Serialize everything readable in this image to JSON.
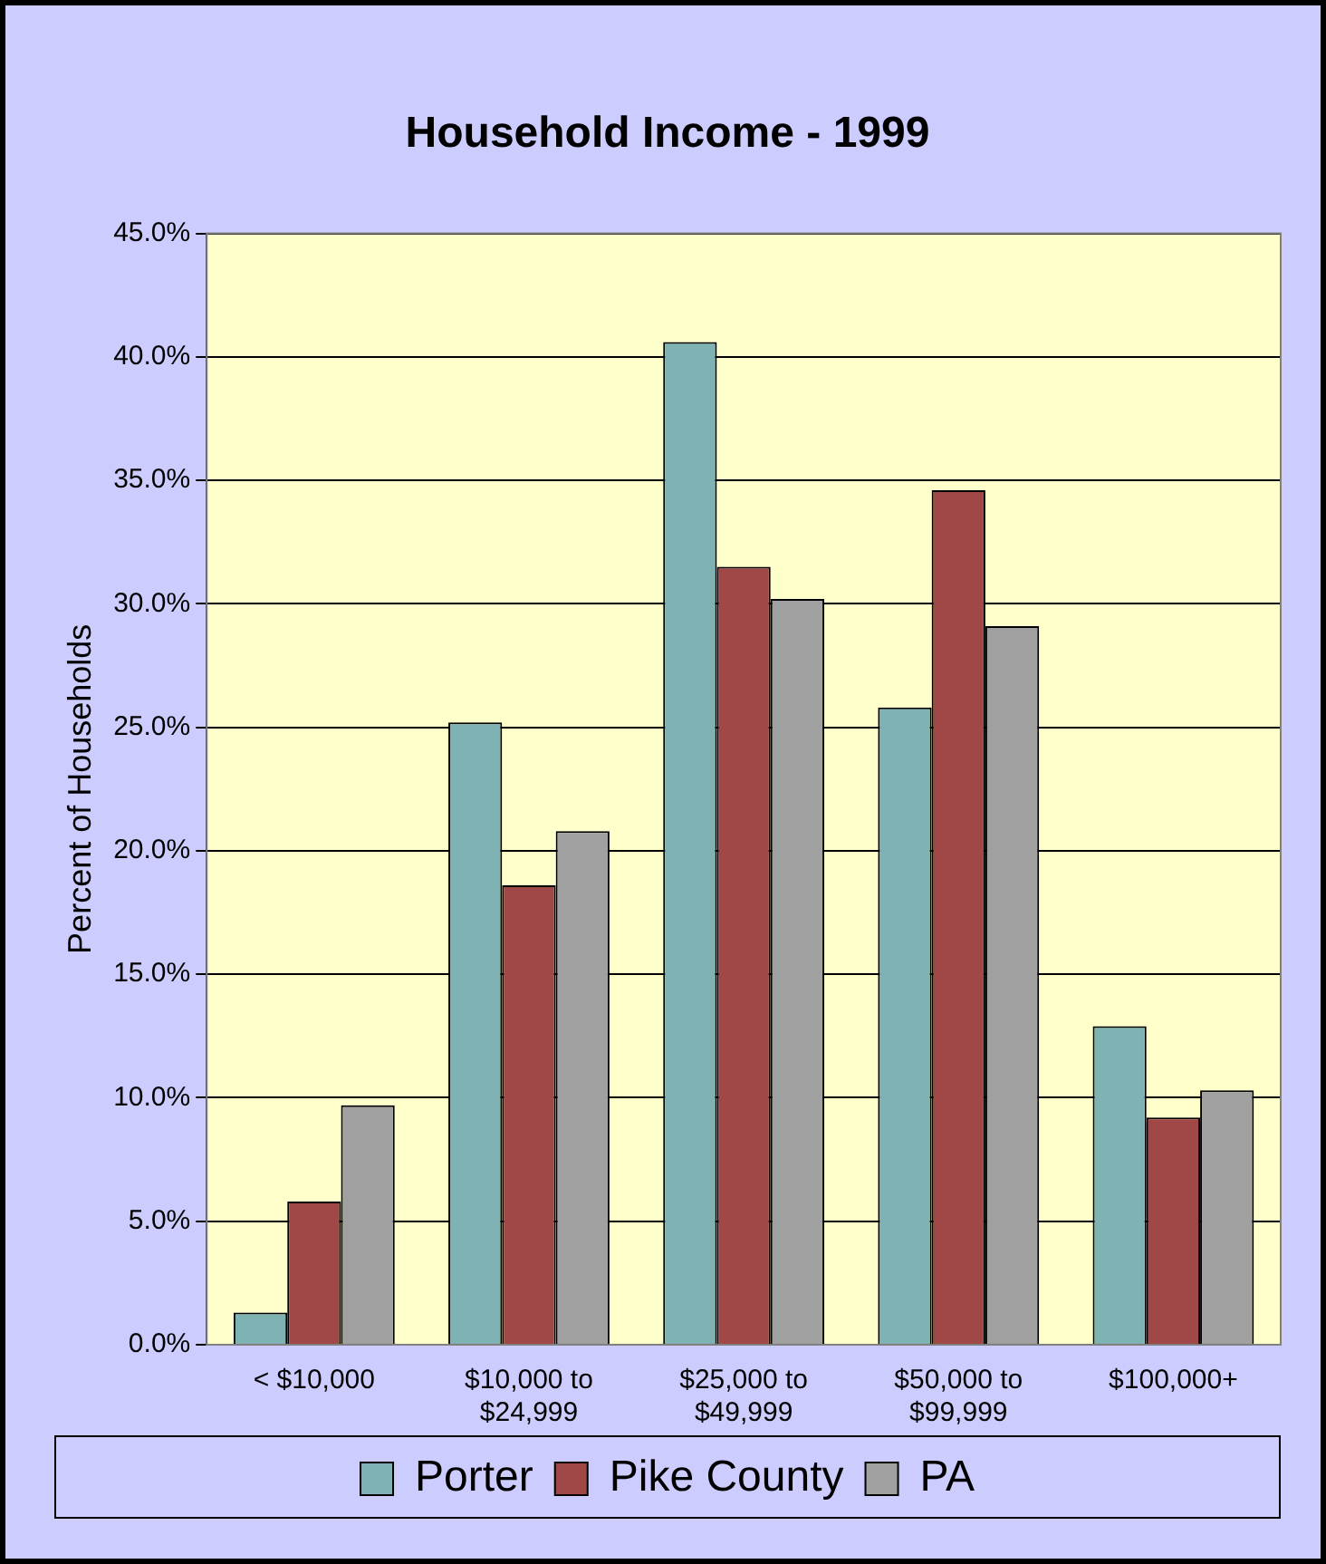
{
  "chart_data": {
    "type": "bar",
    "title": "Household Income - 1999",
    "ylabel": "Percent of Households",
    "categories": [
      "< $10,000",
      "$10,000 to\n$24,999",
      "$25,000 to\n$49,999",
      "$50,000 to\n$99,999",
      "$100,000+"
    ],
    "series": [
      {
        "name": "Porter",
        "color": "#7fb2b2",
        "values": [
          1.3,
          25.2,
          40.6,
          25.8,
          12.9
        ]
      },
      {
        "name": "Pike County",
        "color": "#a04848",
        "values": [
          5.8,
          18.6,
          31.5,
          34.6,
          9.2
        ]
      },
      {
        "name": "PA",
        "color": "#a0a0a0",
        "values": [
          9.7,
          20.8,
          30.2,
          29.1,
          10.3
        ]
      }
    ],
    "ylim": [
      0,
      45
    ],
    "yticks": [
      {
        "value": 0,
        "label": "0.0%"
      },
      {
        "value": 5,
        "label": "5.0%"
      },
      {
        "value": 10,
        "label": "10.0%"
      },
      {
        "value": 15,
        "label": "15.0%"
      },
      {
        "value": 20,
        "label": "20.0%"
      },
      {
        "value": 25,
        "label": "25.0%"
      },
      {
        "value": 30,
        "label": "30.0%"
      },
      {
        "value": 35,
        "label": "35.0%"
      },
      {
        "value": 40,
        "label": "40.0%"
      },
      {
        "value": 45,
        "label": "45.0%"
      }
    ],
    "grid": "y",
    "legend": "bottom"
  }
}
